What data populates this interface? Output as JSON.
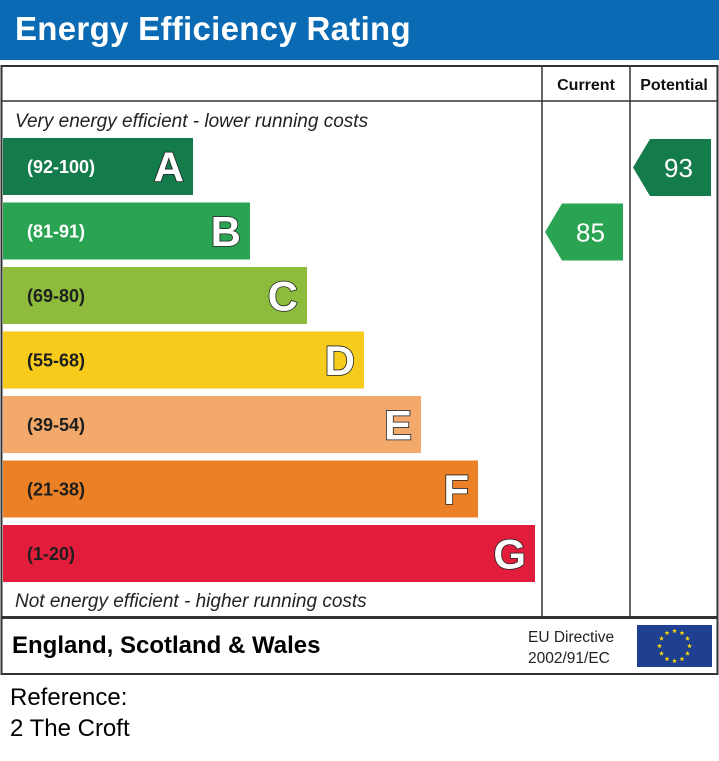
{
  "title": "Energy Efficiency Rating",
  "columns": {
    "current": "Current",
    "potential": "Potential"
  },
  "top_caption": "Very energy efficient - lower running costs",
  "bottom_caption": "Not energy efficient - higher running costs",
  "footer": {
    "region": "England, Scotland & Wales",
    "eu_line1": "EU Directive",
    "eu_line2": "2002/91/EC",
    "flag_icon": "eu-flag-icon"
  },
  "reference": {
    "label": "Reference:",
    "value": "2 The Croft"
  },
  "chart_data": {
    "type": "bar",
    "title": "Energy Efficiency Rating",
    "categories": [
      "A",
      "B",
      "C",
      "D",
      "E",
      "F",
      "G"
    ],
    "bands": [
      {
        "letter": "A",
        "range": "(92-100)",
        "min": 92,
        "max": 100,
        "color": "#147b4a",
        "label_color": "#ffffff"
      },
      {
        "letter": "B",
        "range": "(81-91)",
        "min": 81,
        "max": 91,
        "color": "#2aa452",
        "label_color": "#ffffff"
      },
      {
        "letter": "C",
        "range": "(69-80)",
        "min": 69,
        "max": 80,
        "color": "#8dbc3d",
        "label_color": "#1e1e1e"
      },
      {
        "letter": "D",
        "range": "(55-68)",
        "min": 55,
        "max": 68,
        "color": "#f7cc1c",
        "label_color": "#1e1e1e"
      },
      {
        "letter": "E",
        "range": "(39-54)",
        "min": 39,
        "max": 54,
        "color": "#f2a96b",
        "label_color": "#1e1e1e"
      },
      {
        "letter": "F",
        "range": "(21-38)",
        "min": 21,
        "max": 38,
        "color": "#ec8027",
        "label_color": "#1e1e1e"
      },
      {
        "letter": "G",
        "range": "(1-20)",
        "min": 1,
        "max": 20,
        "color": "#e21d3c",
        "label_color": "#1e1e1e"
      }
    ],
    "series": [
      {
        "name": "Current",
        "value": 85,
        "band": "B",
        "color": "#2aa452"
      },
      {
        "name": "Potential",
        "value": 93,
        "band": "A",
        "color": "#147b4a"
      }
    ]
  }
}
